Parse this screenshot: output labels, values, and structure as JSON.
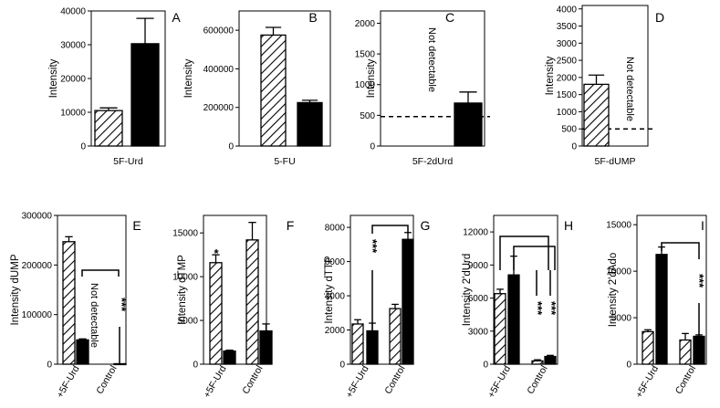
{
  "chart_data": [
    {
      "id": "A",
      "type": "bar",
      "letter": "A",
      "ylabel": "Intensity",
      "ylim": [
        0,
        40000
      ],
      "yticks": [
        "0",
        "10000",
        "20000",
        "30000",
        "40000"
      ],
      "categories": [
        "5F-Urd"
      ],
      "bars": [
        {
          "pattern": "hatch",
          "value": 10500,
          "err": 800
        },
        {
          "pattern": "solid",
          "value": 30300,
          "err": 7500
        }
      ]
    },
    {
      "id": "B",
      "type": "bar",
      "letter": "B",
      "ylabel": "Intensity",
      "ylim": [
        0,
        700000
      ],
      "yticks": [
        "0",
        "200000",
        "400000",
        "600000"
      ],
      "categories": [
        "5-FU"
      ],
      "bars": [
        {
          "pattern": "hatch",
          "value": 575000,
          "err": 40000
        },
        {
          "pattern": "solid",
          "value": 225000,
          "err": 12000
        }
      ]
    },
    {
      "id": "C",
      "type": "bar",
      "letter": "C",
      "ylabel": "Intensity",
      "ylim": [
        0,
        2200
      ],
      "yticks": [
        "0",
        "500",
        "1000",
        "1500",
        "2000"
      ],
      "categories": [
        "5F-2dUrd"
      ],
      "bars": [
        {
          "pattern": "none",
          "value": 0,
          "err": 0
        },
        {
          "pattern": "solid",
          "value": 700,
          "err": 180
        }
      ],
      "dashed_line": 480,
      "note": "Not detectable"
    },
    {
      "id": "D",
      "type": "bar",
      "letter": "D",
      "ylabel": "Intensity",
      "ylim": [
        0,
        4100
      ],
      "yticks": [
        "0",
        "500",
        "1000",
        "1500",
        "2000",
        "2500",
        "3000",
        "3500",
        "4000"
      ],
      "categories": [
        "5F-dUMP"
      ],
      "bars": [
        {
          "pattern": "hatch",
          "value": 1800,
          "err": 270
        },
        {
          "pattern": "none",
          "value": 0,
          "err": 0
        }
      ],
      "dashed_line": 500,
      "note": "Not detectable"
    },
    {
      "id": "E",
      "type": "bar",
      "letter": "E",
      "ylabel": "Intensity dUMP",
      "ylim": [
        0,
        300000
      ],
      "yticks": [
        "0",
        "100000",
        "200000",
        "300000"
      ],
      "categories": [
        "+5F-Urd",
        "Control"
      ],
      "bars": [
        {
          "pattern": "hatch",
          "value": 247000,
          "err": 10000
        },
        {
          "pattern": "solid",
          "value": 49000,
          "err": 2000
        },
        {
          "pattern": "none",
          "value": 0,
          "err": 0
        },
        {
          "pattern": "solid",
          "value": 1000,
          "err": 0
        }
      ],
      "note": "Not detectable",
      "significance": "***"
    },
    {
      "id": "F",
      "type": "bar",
      "letter": "F",
      "ylabel": "Intensity dTMP",
      "ylim": [
        0,
        17000
      ],
      "yticks": [
        "0",
        "5000",
        "10000",
        "15000"
      ],
      "categories": [
        "+5F-Urd",
        "Control"
      ],
      "bars": [
        {
          "pattern": "hatch",
          "value": 11600,
          "err": 900
        },
        {
          "pattern": "solid",
          "value": 1500,
          "err": 100
        },
        {
          "pattern": "hatch",
          "value": 14200,
          "err": 2000
        },
        {
          "pattern": "solid",
          "value": 3800,
          "err": 800
        }
      ],
      "significance": "*"
    },
    {
      "id": "G",
      "type": "bar",
      "letter": "G",
      "ylabel": "Intensity dTTP",
      "ylim": [
        0,
        8700
      ],
      "yticks": [
        "0",
        "2000",
        "4000",
        "6000",
        "8000"
      ],
      "categories": [
        "+5F-Urd",
        "Control"
      ],
      "bars": [
        {
          "pattern": "hatch",
          "value": 2350,
          "err": 250
        },
        {
          "pattern": "solid",
          "value": 1950,
          "err": 450
        },
        {
          "pattern": "hatch",
          "value": 3250,
          "err": 250
        },
        {
          "pattern": "solid",
          "value": 7300,
          "err": 400
        }
      ],
      "significance": "***"
    },
    {
      "id": "H",
      "type": "bar",
      "letter": "H",
      "ylabel": "Intensity 2'dUrd",
      "ylim": [
        0,
        13500
      ],
      "yticks": [
        "0",
        "3000",
        "6000",
        "9000",
        "12000"
      ],
      "categories": [
        "+5F-Urd",
        "Control"
      ],
      "bars": [
        {
          "pattern": "hatch",
          "value": 6400,
          "err": 400
        },
        {
          "pattern": "solid",
          "value": 8100,
          "err": 1700
        },
        {
          "pattern": "hatch",
          "value": 300,
          "err": 100
        },
        {
          "pattern": "solid",
          "value": 700,
          "err": 100
        }
      ],
      "significance": "***"
    },
    {
      "id": "I",
      "type": "bar",
      "letter": "I",
      "ylabel": "Intensity 2'dAdo",
      "ylim": [
        0,
        16000
      ],
      "yticks": [
        "0",
        "5000",
        "10000",
        "15000"
      ],
      "categories": [
        "+5F-Urd",
        "Control"
      ],
      "bars": [
        {
          "pattern": "hatch",
          "value": 3500,
          "err": 200
        },
        {
          "pattern": "solid",
          "value": 11800,
          "err": 800
        },
        {
          "pattern": "hatch",
          "value": 2600,
          "err": 700
        },
        {
          "pattern": "solid",
          "value": 3000,
          "err": 150
        }
      ],
      "significance": "***"
    }
  ]
}
